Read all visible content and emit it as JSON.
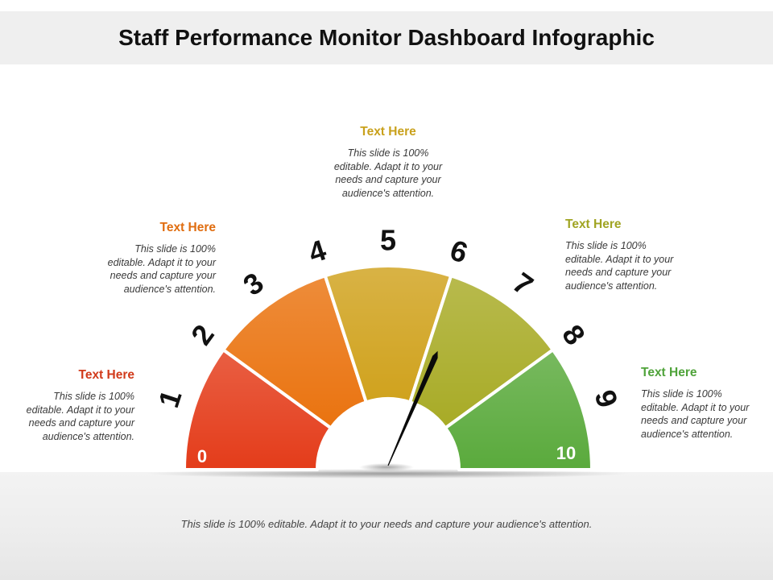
{
  "title": "Staff Performance Monitor Dashboard Infographic",
  "footer": "This slide is 100% editable. Adapt it to your needs and capture your audience's attention.",
  "gauge": {
    "min_label": "0",
    "max_label": "10",
    "ticks": [
      "1",
      "2",
      "3",
      "4",
      "5",
      "6",
      "7",
      "8",
      "9"
    ],
    "segment_colors": [
      "#e43c1a",
      "#ea730f",
      "#d0a21d",
      "#a8ab26",
      "#5aaa3c"
    ],
    "needle_value": 6.3
  },
  "callouts": [
    {
      "heading": "Text Here",
      "color": "#d13a1a",
      "body": "This slide is 100% editable. Adapt it to your needs and capture your audience's attention."
    },
    {
      "heading": "Text Here",
      "color": "#e06d10",
      "body": "This slide is 100% editable. Adapt it to your needs and capture your audience's attention."
    },
    {
      "heading": "Text Here",
      "color": "#c9a11c",
      "body": "This slide is 100% editable. Adapt it to your needs and capture your audience's attention."
    },
    {
      "heading": "Text Here",
      "color": "#a0a422",
      "body": "This slide is 100% editable. Adapt it to your needs and capture your audience's attention."
    },
    {
      "heading": "Text Here",
      "color": "#4fa33a",
      "body": "This slide is 100% editable. Adapt it to your needs and capture your audience's attention."
    }
  ]
}
